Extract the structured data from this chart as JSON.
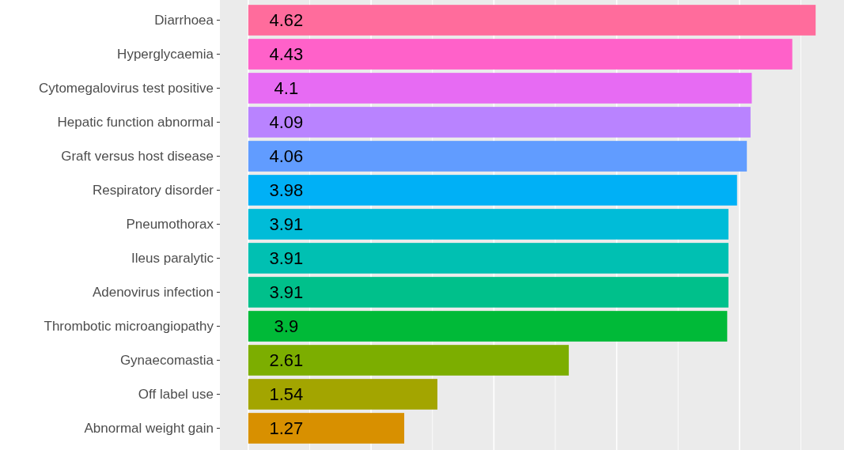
{
  "chart_data": {
    "type": "bar",
    "orientation": "horizontal",
    "categories": [
      "Diarrhoea",
      "Hyperglycaemia",
      "Cytomegalovirus test positive",
      "Hepatic function abnormal",
      "Graft versus host disease",
      "Respiratory disorder",
      "Pneumothorax",
      "Ileus paralytic",
      "Adenovirus infection",
      "Thrombotic microangiopathy",
      "Gynaecomastia",
      "Off label use",
      "Abnormal weight gain"
    ],
    "values": [
      4.62,
      4.43,
      4.1,
      4.09,
      4.06,
      3.98,
      3.91,
      3.91,
      3.91,
      3.9,
      2.61,
      1.54,
      1.27
    ],
    "colors": [
      "#ff6c9c",
      "#ff61c9",
      "#e76bf3",
      "#b983ff",
      "#619cff",
      "#00b0f6",
      "#00bcd8",
      "#00c0b2",
      "#00c08b",
      "#00ba38",
      "#7cae00",
      "#a3a500",
      "#d89000"
    ],
    "xlim": [
      -0.231,
      4.851
    ],
    "xticks": [
      {
        "value": 0,
        "label": null
      },
      {
        "value": 1,
        "label": null
      },
      {
        "value": 2,
        "label": null
      },
      {
        "value": 3,
        "label": null
      },
      {
        "value": 4,
        "label": null
      }
    ],
    "grid": "x",
    "tick_labels": "y",
    "data_labels": true
  }
}
